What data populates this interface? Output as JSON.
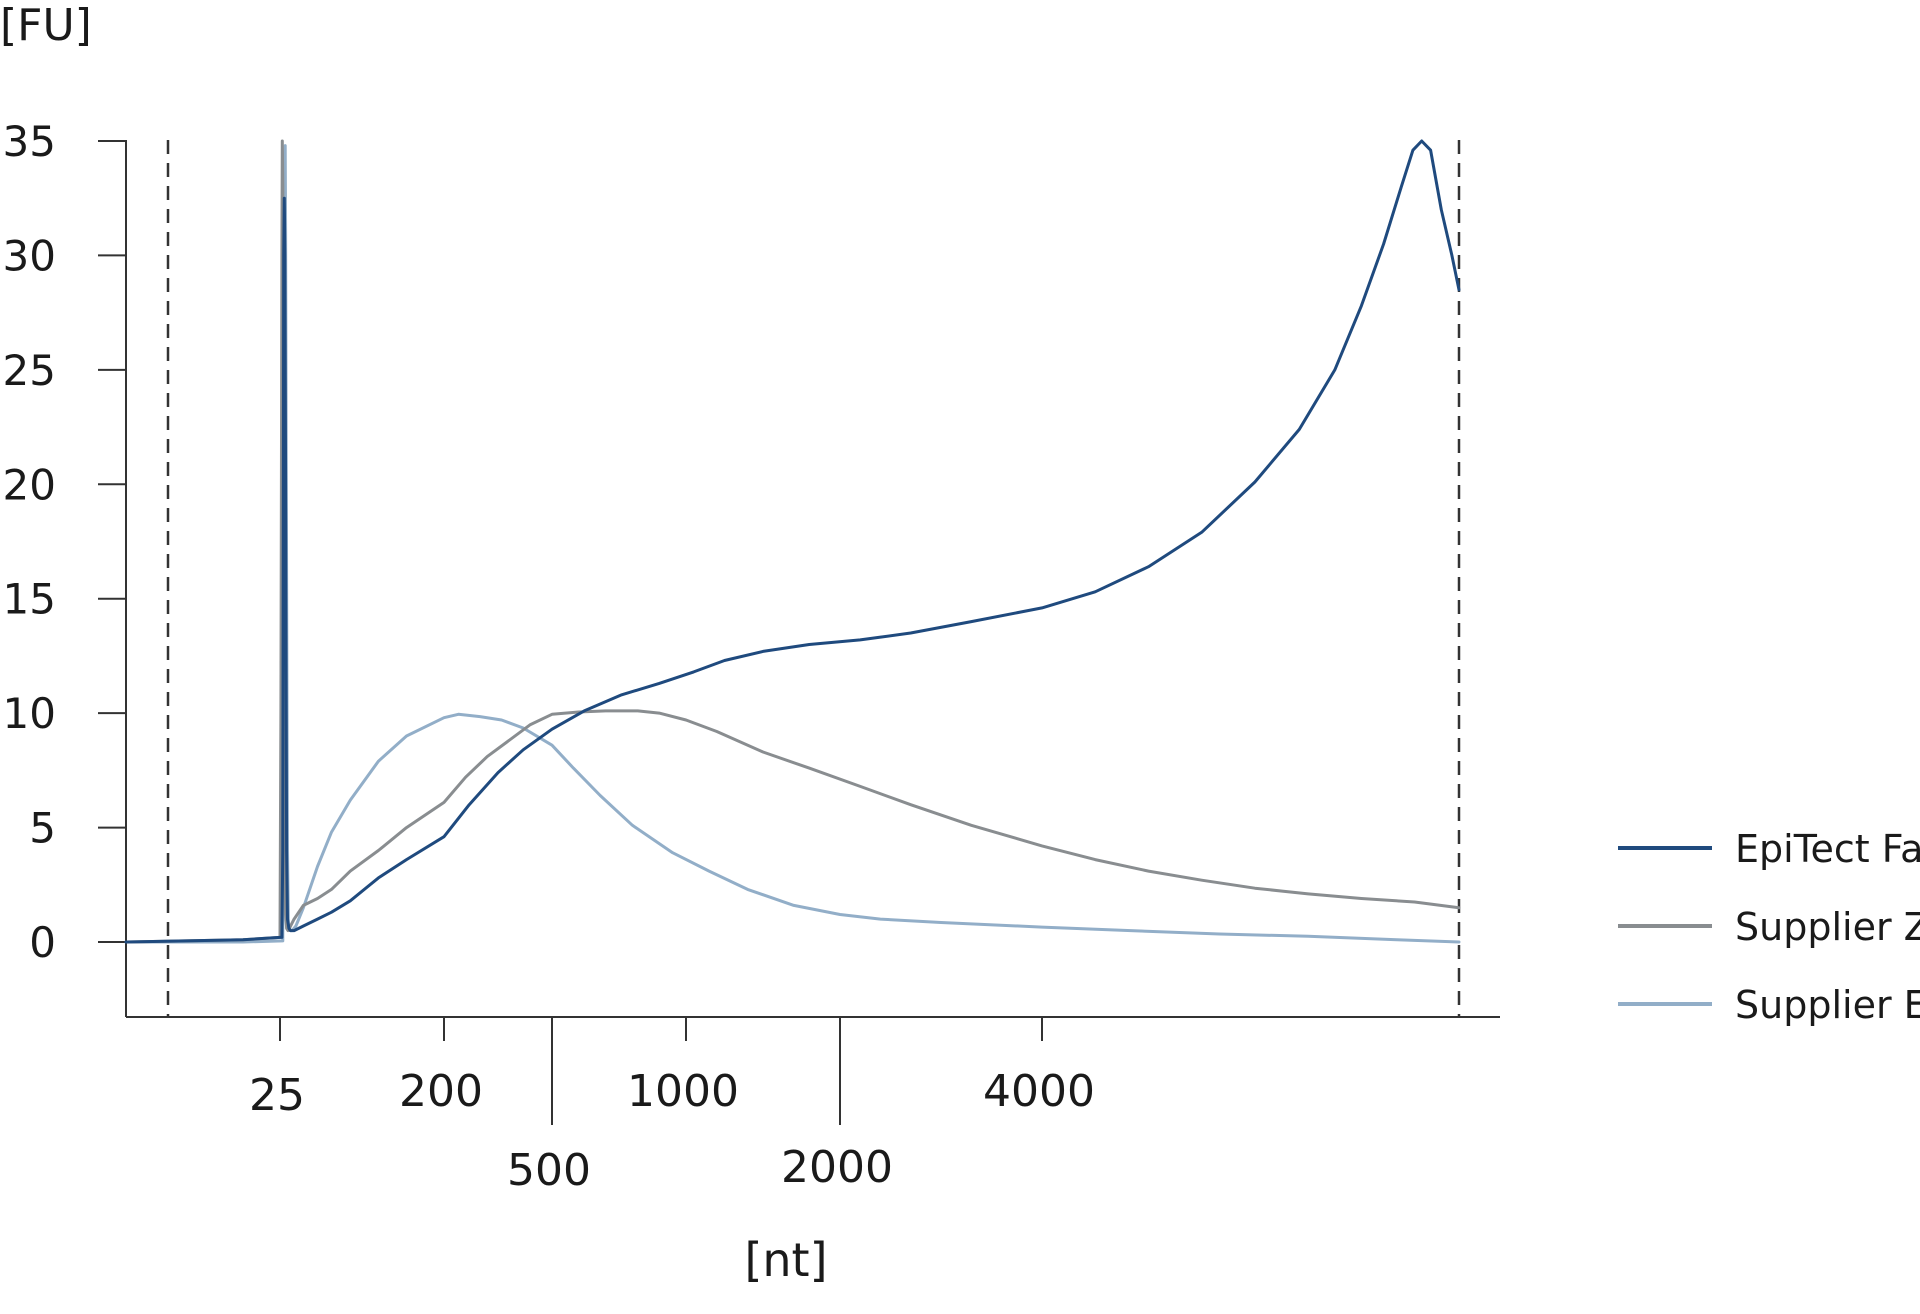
{
  "chart_data": {
    "type": "line",
    "ylabel": "[FU]",
    "xlabel": "[nt]",
    "ylim": [
      -3.3,
      35
    ],
    "yticks": [
      0,
      5,
      10,
      15,
      20,
      25,
      30,
      35
    ],
    "xticks": [
      "25",
      "200",
      "500",
      "1000",
      "2000",
      "4000"
    ],
    "grid": false,
    "legend_position": "right",
    "reference_lines": [
      "lower marker",
      "upper marker"
    ],
    "x_scale": "nonlinear sizing ladder (ticks at 25, 200, 500, 1000, 2000, 4000 nt)",
    "series": [
      {
        "name": "EpiTect Fast",
        "color": "#1f4a7e",
        "points": [
          [
            0,
            0
          ],
          [
            19,
            0.1
          ],
          [
            25,
            0.2
          ],
          [
            27,
            0.2
          ],
          [
            28,
            4
          ],
          [
            29,
            30
          ],
          [
            29.6,
            32.5
          ],
          [
            30.2,
            30
          ],
          [
            31,
            20
          ],
          [
            32,
            4
          ],
          [
            33,
            1
          ],
          [
            34.5,
            0.6
          ],
          [
            36,
            0.5
          ],
          [
            40,
            0.5
          ],
          [
            50,
            0.7
          ],
          [
            65,
            1.0
          ],
          [
            80,
            1.3
          ],
          [
            100,
            1.8
          ],
          [
            130,
            2.8
          ],
          [
            160,
            3.6
          ],
          [
            200,
            4.6
          ],
          [
            270,
            6.0
          ],
          [
            350,
            7.4
          ],
          [
            420,
            8.4
          ],
          [
            500,
            9.3
          ],
          [
            620,
            10.1
          ],
          [
            760,
            10.8
          ],
          [
            900,
            11.3
          ],
          [
            1050,
            11.8
          ],
          [
            1250,
            12.3
          ],
          [
            1500,
            12.7
          ],
          [
            1800,
            13.0
          ],
          [
            2200,
            13.2
          ],
          [
            2700,
            13.5
          ],
          [
            3300,
            14.0
          ],
          [
            4000,
            14.6
          ],
          [
            4600,
            15.3
          ],
          [
            5200,
            16.4
          ],
          [
            5800,
            17.9
          ],
          [
            6400,
            20.1
          ],
          [
            6900,
            22.4
          ],
          [
            7300,
            25.0
          ],
          [
            7600,
            27.8
          ],
          [
            7850,
            30.5
          ],
          [
            8050,
            33.0
          ],
          [
            8180,
            34.6
          ],
          [
            8280,
            35.0
          ],
          [
            8380,
            34.6
          ],
          [
            8500,
            32.0
          ],
          [
            8620,
            30.0
          ],
          [
            8700,
            28.5
          ]
        ]
      },
      {
        "name": "Supplier Z",
        "color": "#898d90",
        "points": [
          [
            0,
            0
          ],
          [
            19,
            0.1
          ],
          [
            25,
            0.2
          ],
          [
            26,
            10
          ],
          [
            27,
            30
          ],
          [
            27.5,
            35
          ],
          [
            28,
            33
          ],
          [
            29,
            22
          ],
          [
            30,
            6
          ],
          [
            31,
            1.2
          ],
          [
            32,
            0.6
          ],
          [
            33.5,
            0.5
          ],
          [
            35,
            0.6
          ],
          [
            40,
            1.0
          ],
          [
            50,
            1.6
          ],
          [
            65,
            1.9
          ],
          [
            80,
            2.3
          ],
          [
            100,
            3.1
          ],
          [
            130,
            4.0
          ],
          [
            160,
            5.0
          ],
          [
            200,
            6.1
          ],
          [
            260,
            7.2
          ],
          [
            320,
            8.1
          ],
          [
            380,
            8.8
          ],
          [
            440,
            9.5
          ],
          [
            500,
            9.95
          ],
          [
            600,
            10.05
          ],
          [
            700,
            10.1
          ],
          [
            820,
            10.1
          ],
          [
            900,
            10.0
          ],
          [
            1000,
            9.7
          ],
          [
            1200,
            9.2
          ],
          [
            1500,
            8.3
          ],
          [
            1800,
            7.6
          ],
          [
            2200,
            6.8
          ],
          [
            2700,
            6.0
          ],
          [
            3300,
            5.1
          ],
          [
            4000,
            4.2
          ],
          [
            4600,
            3.6
          ],
          [
            5200,
            3.1
          ],
          [
            5800,
            2.7
          ],
          [
            6400,
            2.35
          ],
          [
            7000,
            2.1
          ],
          [
            7600,
            1.9
          ],
          [
            8200,
            1.75
          ],
          [
            8700,
            1.5
          ]
        ]
      },
      {
        "name": "Supplier E",
        "color": "#92aec8",
        "points": [
          [
            0,
            0
          ],
          [
            19,
            0
          ],
          [
            28,
            0.05
          ],
          [
            29,
            15
          ],
          [
            30,
            34
          ],
          [
            30.5,
            34.8
          ],
          [
            31,
            31
          ],
          [
            32,
            16
          ],
          [
            33,
            4
          ],
          [
            34,
            0.8
          ],
          [
            36,
            0.5
          ],
          [
            38,
            0.5
          ],
          [
            42,
            0.7
          ],
          [
            50,
            1.5
          ],
          [
            65,
            3.3
          ],
          [
            80,
            4.8
          ],
          [
            100,
            6.2
          ],
          [
            130,
            7.9
          ],
          [
            160,
            9.0
          ],
          [
            200,
            9.8
          ],
          [
            240,
            9.95
          ],
          [
            300,
            9.85
          ],
          [
            360,
            9.7
          ],
          [
            420,
            9.35
          ],
          [
            500,
            8.6
          ],
          [
            580,
            7.6
          ],
          [
            680,
            6.4
          ],
          [
            800,
            5.1
          ],
          [
            950,
            3.9
          ],
          [
            1150,
            3.1
          ],
          [
            1400,
            2.3
          ],
          [
            1700,
            1.6
          ],
          [
            2000,
            1.2
          ],
          [
            2400,
            1.0
          ],
          [
            3000,
            0.85
          ],
          [
            4000,
            0.65
          ],
          [
            5000,
            0.5
          ],
          [
            6000,
            0.35
          ],
          [
            7000,
            0.25
          ],
          [
            8000,
            0.1
          ],
          [
            8700,
            0.0
          ]
        ]
      }
    ]
  }
}
